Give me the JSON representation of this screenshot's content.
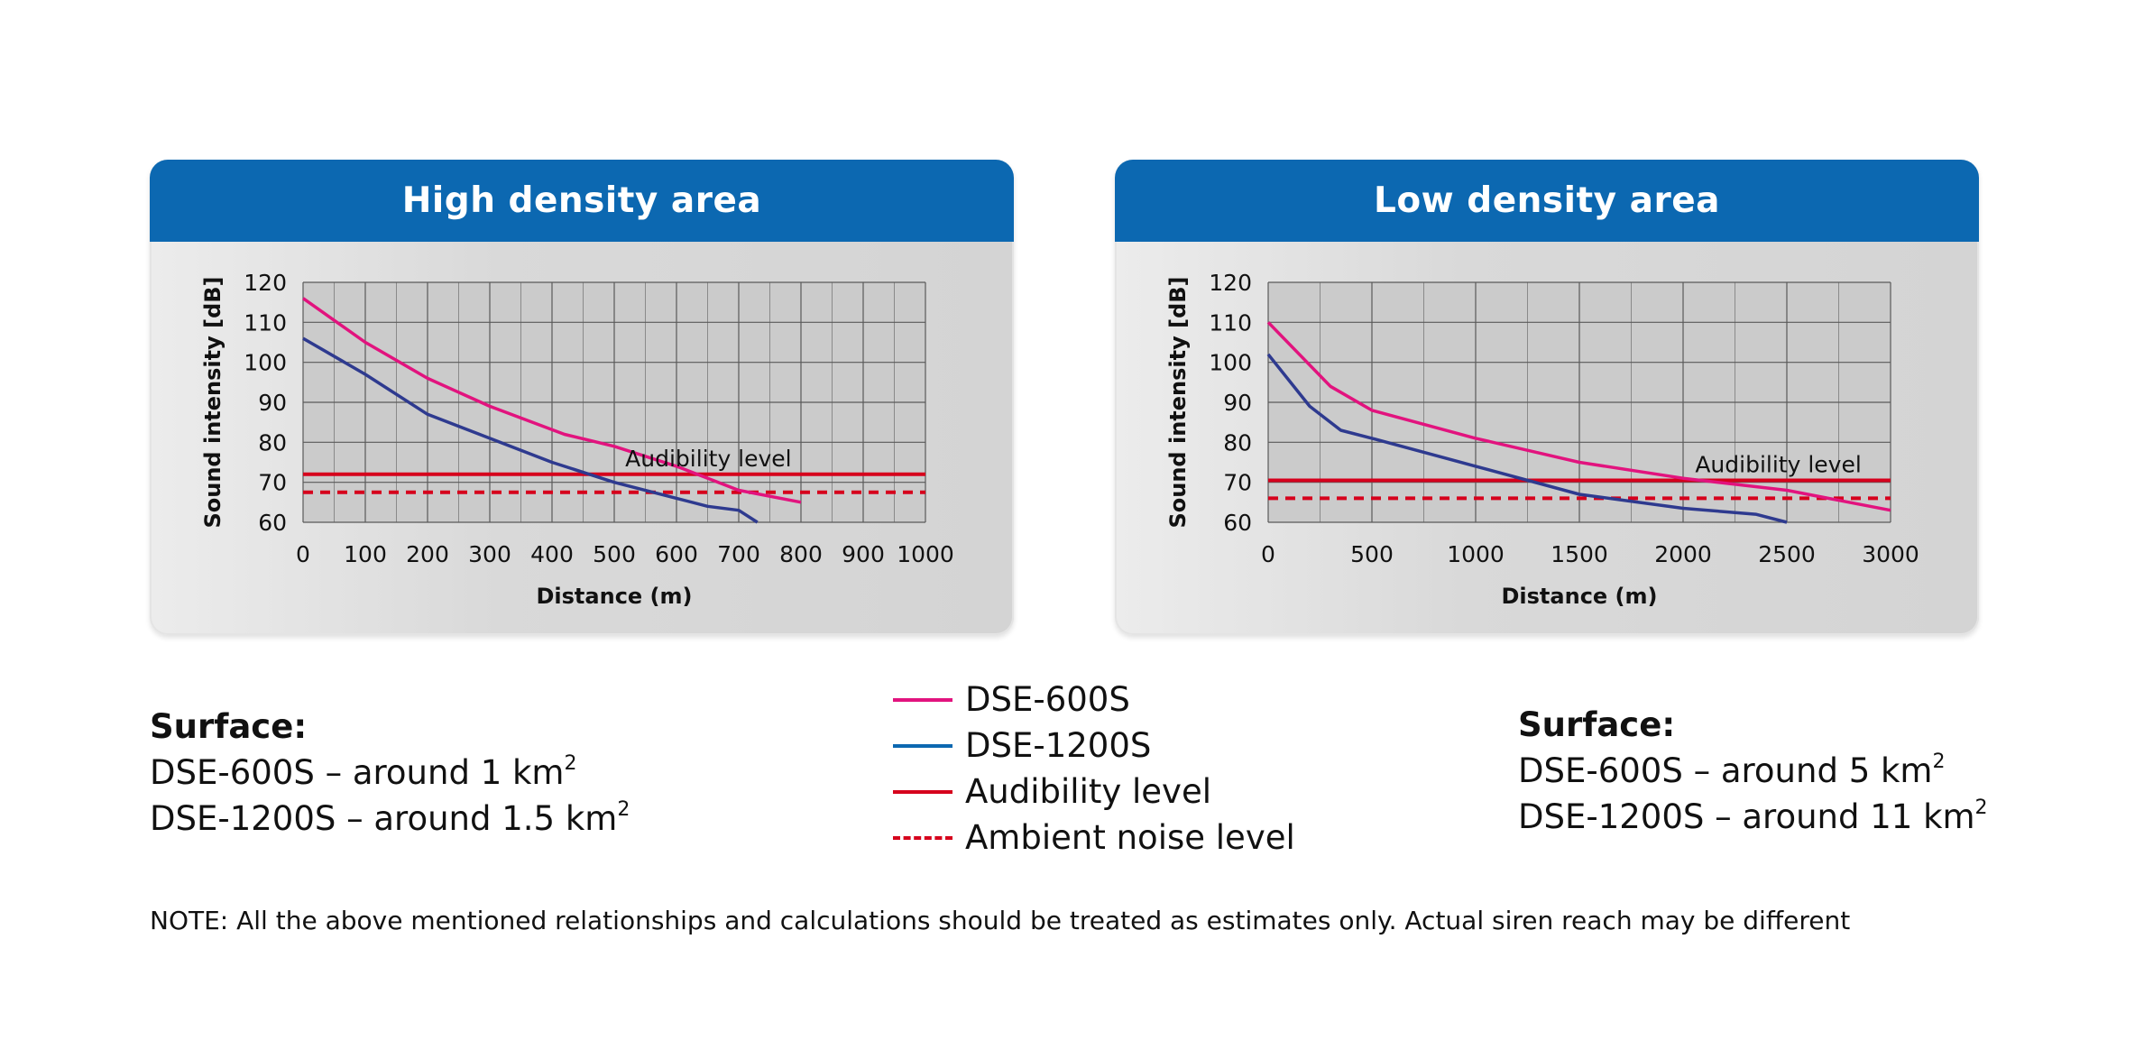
{
  "chart_data": [
    {
      "type": "line",
      "title": "High density area",
      "xlabel": "Distance (m)",
      "ylabel": "Sound intensity [dB]",
      "xlim": [
        0,
        1000
      ],
      "ylim": [
        60,
        120
      ],
      "x_ticks": [
        0,
        100,
        200,
        300,
        400,
        500,
        600,
        700,
        800,
        900,
        1000
      ],
      "y_ticks": [
        60,
        70,
        80,
        90,
        100,
        110,
        120
      ],
      "grid": true,
      "series": [
        {
          "name": "DSE-600S",
          "color": "#e2137e",
          "points": [
            [
              0,
              116
            ],
            [
              100,
              105
            ],
            [
              200,
              96
            ],
            [
              300,
              89
            ],
            [
              420,
              82
            ],
            [
              500,
              79
            ],
            [
              600,
              74
            ],
            [
              700,
              68
            ],
            [
              800,
              65
            ]
          ]
        },
        {
          "name": "DSE-1200S",
          "color": "#2e3a8f",
          "points": [
            [
              0,
              106
            ],
            [
              100,
              97
            ],
            [
              200,
              87
            ],
            [
              300,
              81
            ],
            [
              400,
              75
            ],
            [
              500,
              70
            ],
            [
              600,
              66
            ],
            [
              650,
              64
            ],
            [
              700,
              63
            ],
            [
              730,
              60
            ]
          ]
        }
      ],
      "reference_lines": [
        {
          "name": "Audibility level",
          "y": 72,
          "style": "solid",
          "color": "#d6001c"
        },
        {
          "name": "Ambient noise level",
          "y": 67.5,
          "style": "dashed",
          "color": "#d6001c"
        }
      ],
      "annotation": {
        "text": "Audibility level",
        "x": 785,
        "y": 72
      }
    },
    {
      "type": "line",
      "title": "Low density area",
      "xlabel": "Distance (m)",
      "ylabel": "Sound intensity [dB]",
      "xlim": [
        0,
        3000
      ],
      "ylim": [
        60,
        120
      ],
      "x_ticks": [
        0,
        500,
        1000,
        1500,
        2000,
        2500,
        3000
      ],
      "y_ticks": [
        60,
        70,
        80,
        90,
        100,
        110,
        120
      ],
      "grid": true,
      "series": [
        {
          "name": "DSE-600S",
          "color": "#e2137e",
          "points": [
            [
              0,
              110
            ],
            [
              300,
              94
            ],
            [
              500,
              88
            ],
            [
              1000,
              81
            ],
            [
              1500,
              75
            ],
            [
              2000,
              71
            ],
            [
              2500,
              68
            ],
            [
              3000,
              63
            ]
          ]
        },
        {
          "name": "DSE-1200S",
          "color": "#2e3a8f",
          "points": [
            [
              0,
              102
            ],
            [
              200,
              89
            ],
            [
              350,
              83
            ],
            [
              500,
              81
            ],
            [
              1000,
              74
            ],
            [
              1500,
              67
            ],
            [
              2000,
              63.5
            ],
            [
              2350,
              62
            ],
            [
              2500,
              60
            ]
          ]
        }
      ],
      "reference_lines": [
        {
          "name": "Audibility level",
          "y": 70.5,
          "style": "solid",
          "color": "#d6001c"
        },
        {
          "name": "Ambient noise level",
          "y": 66,
          "style": "dashed",
          "color": "#d6001c"
        }
      ],
      "annotation": {
        "text": "Audibility level",
        "x": 2860,
        "y": 70.5
      }
    }
  ],
  "surface_left": {
    "label": "Surface:",
    "line1": "DSE-600S – around 1 km",
    "line2": "DSE-1200S – around 1.5 km",
    "sup": "2"
  },
  "surface_right": {
    "label": "Surface:",
    "line1": "DSE-600S – around 5 km",
    "line2": "DSE-1200S – around 11 km",
    "sup": "2"
  },
  "legend": [
    {
      "label": "DSE-600S",
      "color": "#e2137e",
      "style": "solid"
    },
    {
      "label": "DSE-1200S",
      "color": "#0c68b1",
      "style": "solid"
    },
    {
      "label": "Audibility level",
      "color": "#d6001c",
      "style": "solid"
    },
    {
      "label": "Ambient noise level",
      "color": "#d6001c",
      "style": "dashed"
    }
  ],
  "note": "NOTE: All the above mentioned relationships and calculations should be treated as estimates only. Actual siren reach may be different"
}
